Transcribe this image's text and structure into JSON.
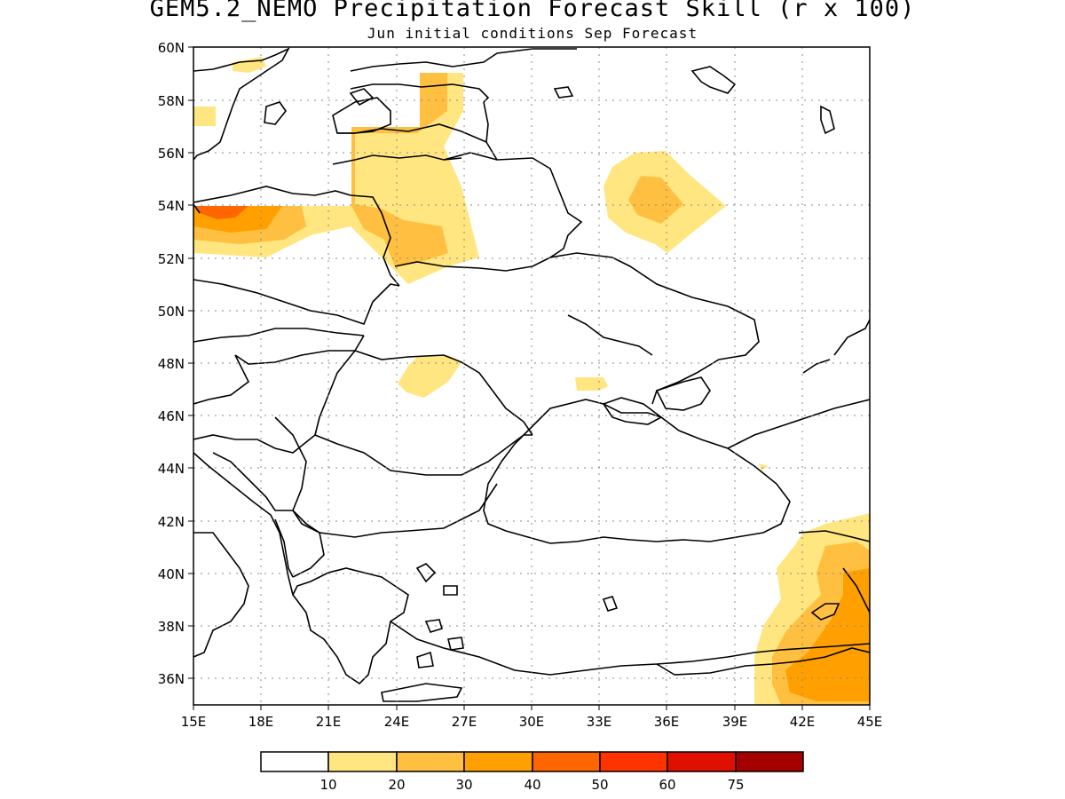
{
  "title": "GEM5.2_NEMO Precipitation Forecast Skill (r x 100)",
  "subtitle": "Jun initial conditions  Sep Forecast",
  "map": {
    "lat_labels": [
      "60N",
      "58N",
      "56N",
      "54N",
      "52N",
      "50N",
      "48N",
      "46N",
      "44N",
      "42N",
      "40N",
      "38N",
      "36N"
    ],
    "lon_labels": [
      "15E",
      "18E",
      "21E",
      "24E",
      "27E",
      "30E",
      "33E",
      "36E",
      "39E",
      "42E",
      "45E"
    ],
    "lon_range": [
      15,
      45
    ],
    "lat_range": [
      35,
      60
    ],
    "grid": "dotted"
  },
  "legend": {
    "colors": [
      "#ffffff",
      "#ffe680",
      "#ffbf40",
      "#ff9f00",
      "#ff6600",
      "#ff3300",
      "#e01000",
      "#a50000"
    ],
    "labels": [
      "10",
      "20",
      "30",
      "40",
      "50",
      "60",
      "75"
    ]
  }
}
